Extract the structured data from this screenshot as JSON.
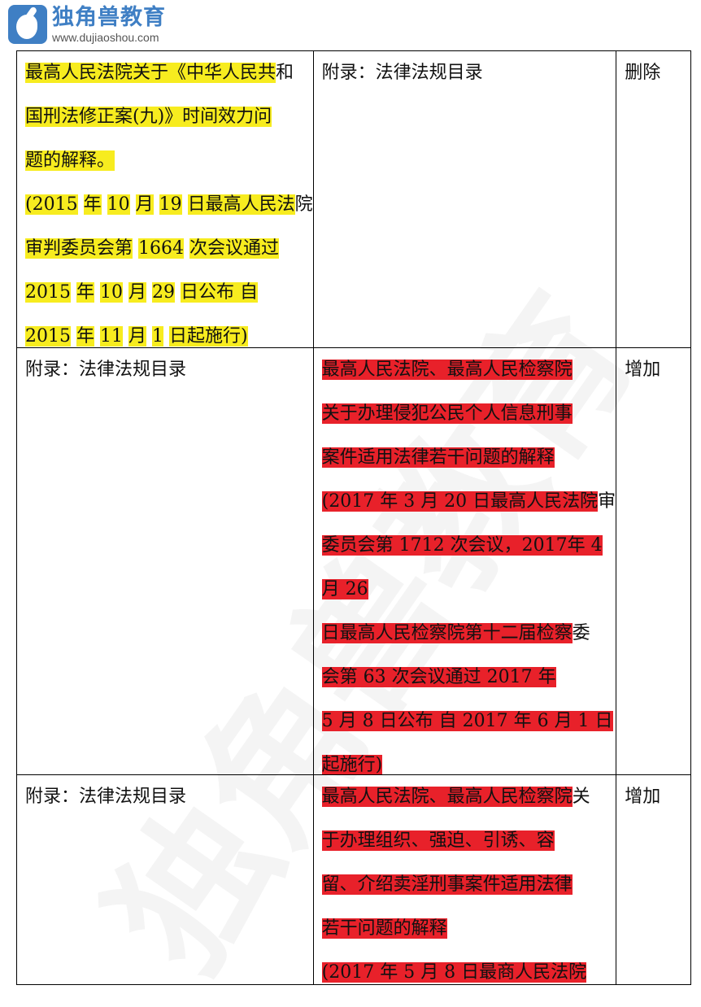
{
  "logo": {
    "name_cn": "独角兽教育",
    "url": "www.dujiaoshou.com"
  },
  "watermark": "独角兽教育",
  "colors": {
    "yellow_highlight": "#f7ec1f",
    "red_highlight": "#e8212a",
    "brand_blue": "#3f7fc4"
  },
  "rows": [
    {
      "col1": {
        "highlight": "yellow",
        "lines": [
          [
            [
              "最高人民法院关于《中华人民共",
              1
            ],
            [
              "和",
              0
            ]
          ],
          [
            [
              "国刑法修正案(九)》时间效力问",
              1
            ]
          ],
          [
            [
              "题的解释。",
              1
            ]
          ],
          [
            [
              "(2015",
              1
            ],
            [
              " ",
              0
            ],
            [
              "年",
              1
            ],
            [
              " ",
              0
            ],
            [
              "10",
              1
            ],
            [
              " ",
              0
            ],
            [
              "月",
              1
            ],
            [
              " ",
              0
            ],
            [
              "19",
              1
            ],
            [
              " ",
              0
            ],
            [
              "日最高人民法",
              1
            ],
            [
              "院",
              0
            ]
          ],
          [
            [
              "审判委员会第",
              1
            ],
            [
              " ",
              0
            ],
            [
              "1664",
              1
            ],
            [
              " ",
              0
            ],
            [
              "次会议通过",
              1
            ]
          ],
          [
            [
              "2015",
              1
            ],
            [
              " ",
              0
            ],
            [
              "年",
              1
            ],
            [
              " ",
              0
            ],
            [
              "10",
              1
            ],
            [
              " ",
              0
            ],
            [
              "月",
              1
            ],
            [
              " ",
              0
            ],
            [
              "29",
              1
            ],
            [
              " ",
              0
            ],
            [
              "日公布  自",
              1
            ]
          ],
          [
            [
              "2015",
              1
            ],
            [
              " ",
              0
            ],
            [
              "年",
              1
            ],
            [
              " ",
              0
            ],
            [
              "11",
              1
            ],
            [
              " ",
              0
            ],
            [
              "月",
              1
            ],
            [
              " ",
              0
            ],
            [
              "1",
              1
            ],
            [
              " ",
              0
            ],
            [
              "日起施行)",
              1
            ]
          ]
        ]
      },
      "col2": {
        "highlight": "none",
        "lines": [
          [
            [
              "附录：法律法规目录",
              0
            ]
          ]
        ]
      },
      "col3": {
        "highlight": "none",
        "lines": [
          [
            [
              "删除",
              0
            ]
          ]
        ]
      }
    },
    {
      "col1": {
        "highlight": "none",
        "lines": [
          [
            [
              "附录：法律法规目录",
              0
            ]
          ]
        ]
      },
      "col2": {
        "highlight": "red",
        "lines": [
          [
            [
              "最高人民法院、最高人民检察院",
              1
            ]
          ],
          [
            [
              "关于办理侵犯公民个人信息刑事",
              1
            ]
          ],
          [
            [
              "案件适用法律若干问题的解释",
              1
            ]
          ],
          [
            [
              "(2017 年 3 月 20 日最高人民法院",
              1
            ],
            [
              "审",
              0
            ]
          ],
          [
            [
              "委员会第 1712 次会议，2017年 4 ",
              1
            ]
          ],
          [
            [
              "月 26    ",
              1
            ]
          ],
          [
            [
              "日最高人民检察院第十二届检察",
              1
            ],
            [
              "委",
              0
            ]
          ],
          [
            [
              "会第 63 次会议通过  2017 年",
              1
            ]
          ],
          [
            [
              "5 月 8 日公布  自 2017 年 6 月 1 日",
              1
            ]
          ],
          [
            [
              "起施行)  ",
              1
            ]
          ]
        ]
      },
      "col3": {
        "highlight": "none",
        "lines": [
          [
            [
              "增加",
              0
            ]
          ]
        ]
      }
    },
    {
      "col1": {
        "highlight": "none",
        "lines": [
          [
            [
              "附录：法律法规目录",
              0
            ]
          ]
        ]
      },
      "col2": {
        "highlight": "red",
        "lines": [
          [
            [
              "最高人民法院、最高人民检察院",
              1
            ],
            [
              "关",
              0
            ]
          ],
          [
            [
              "于办理组织、强迫、引诱、容",
              1
            ]
          ],
          [
            [
              "留、介绍卖淫刑事案件适用法律",
              1
            ]
          ],
          [
            [
              "若干问题的解释",
              1
            ]
          ],
          [
            [
              "(2017 年 5 月 8 日最商人民法院",
              1
            ]
          ]
        ]
      },
      "col3": {
        "highlight": "none",
        "lines": [
          [
            [
              "增加",
              0
            ]
          ]
        ]
      }
    }
  ]
}
